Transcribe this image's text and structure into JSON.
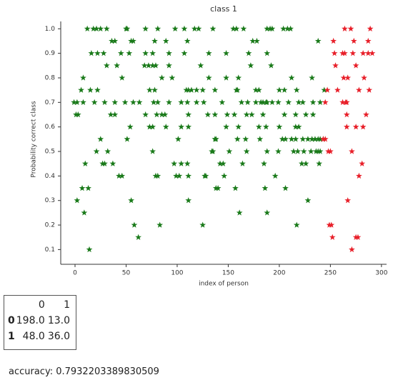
{
  "chart_data": {
    "type": "scatter",
    "title": "class 1",
    "x_label": "index of person",
    "y_label": "Probability correct class",
    "xlim": [
      -14,
      305
    ],
    "ylim": [
      0.04,
      1.03
    ],
    "xticks": [
      0,
      50,
      100,
      150,
      200,
      250,
      300
    ],
    "yticks": [
      0.1,
      0.2,
      0.3,
      0.4,
      0.5,
      0.6,
      0.7,
      0.8,
      0.9,
      {
        "value": 1,
        "label": "1.0"
      }
    ],
    "marker": "star",
    "series": [
      {
        "color": "#1a7a1a",
        "x": [
          12,
          18,
          21,
          25,
          31,
          50,
          51,
          69,
          81,
          98,
          107,
          117,
          121,
          135,
          155,
          158,
          165,
          188,
          191,
          193,
          204,
          208,
          211,
          36,
          39,
          55,
          57,
          78,
          89,
          110,
          174,
          178,
          238,
          16,
          22,
          28,
          45,
          53,
          69,
          76,
          92,
          107,
          131,
          148,
          170,
          188,
          31,
          41,
          68,
          72,
          76,
          79,
          92,
          123,
          172,
          192,
          8,
          46,
          85,
          95,
          131,
          148,
          160,
          212,
          232,
          6,
          15,
          22,
          73,
          78,
          109,
          111,
          114,
          119,
          125,
          137,
          158,
          159,
          177,
          180,
          200,
          205,
          217,
          244,
          -1,
          2,
          8,
          19,
          29,
          39,
          49,
          57,
          63,
          77,
          81,
          92,
          104,
          110,
          119,
          126,
          144,
          163,
          169,
          177,
          182,
          184,
          187,
          188,
          193,
          199,
          209,
          219,
          223,
          233,
          240,
          1,
          3,
          35,
          39,
          69,
          80,
          85,
          88,
          111,
          130,
          137,
          149,
          156,
          168,
          173,
          184,
          205,
          216,
          226,
          233,
          54,
          73,
          76,
          89,
          104,
          111,
          148,
          160,
          180,
          187,
          200,
          216,
          219,
          25,
          51,
          101,
          137,
          138,
          159,
          167,
          181,
          203,
          206,
          212,
          216,
          223,
          228,
          232,
          235,
          238,
          240,
          243,
          21,
          32,
          76,
          134,
          135,
          151,
          168,
          188,
          199,
          214,
          218,
          224,
          231,
          236,
          238,
          240,
          10,
          27,
          29,
          37,
          97,
          104,
          110,
          142,
          145,
          164,
          185,
          222,
          226,
          239,
          43,
          46,
          79,
          81,
          99,
          102,
          111,
          127,
          128,
          146,
          196,
          7,
          13,
          138,
          140,
          157,
          186,
          206,
          2,
          55,
          111,
          228,
          9,
          161,
          188,
          58,
          83,
          125,
          217,
          62,
          14
        ],
        "values": [
          1,
          1,
          1,
          1,
          1,
          1,
          1,
          1,
          1,
          1,
          1,
          1,
          1,
          1,
          1,
          1,
          1,
          1,
          1,
          1,
          1,
          1,
          1,
          0.95,
          0.95,
          0.95,
          0.95,
          0.95,
          0.95,
          0.95,
          0.95,
          0.95,
          0.95,
          0.9,
          0.9,
          0.9,
          0.9,
          0.9,
          0.9,
          0.9,
          0.9,
          0.9,
          0.9,
          0.9,
          0.9,
          0.9,
          0.85,
          0.85,
          0.85,
          0.85,
          0.85,
          0.85,
          0.85,
          0.85,
          0.85,
          0.85,
          0.8,
          0.8,
          0.8,
          0.8,
          0.8,
          0.8,
          0.8,
          0.8,
          0.8,
          0.75,
          0.75,
          0.75,
          0.75,
          0.75,
          0.75,
          0.75,
          0.75,
          0.75,
          0.75,
          0.75,
          0.75,
          0.75,
          0.75,
          0.75,
          0.75,
          0.75,
          0.75,
          0.75,
          0.7,
          0.7,
          0.7,
          0.7,
          0.7,
          0.7,
          0.7,
          0.7,
          0.7,
          0.7,
          0.7,
          0.7,
          0.7,
          0.7,
          0.7,
          0.7,
          0.7,
          0.7,
          0.7,
          0.7,
          0.7,
          0.7,
          0.7,
          0.7,
          0.7,
          0.7,
          0.7,
          0.7,
          0.7,
          0.7,
          0.7,
          0.65,
          0.65,
          0.65,
          0.65,
          0.65,
          0.65,
          0.65,
          0.65,
          0.65,
          0.65,
          0.65,
          0.65,
          0.65,
          0.65,
          0.65,
          0.65,
          0.65,
          0.65,
          0.65,
          0.65,
          0.6,
          0.6,
          0.6,
          0.6,
          0.6,
          0.6,
          0.6,
          0.6,
          0.6,
          0.6,
          0.6,
          0.6,
          0.6,
          0.55,
          0.55,
          0.55,
          0.55,
          0.55,
          0.55,
          0.55,
          0.55,
          0.55,
          0.55,
          0.55,
          0.55,
          0.55,
          0.55,
          0.55,
          0.55,
          0.55,
          0.55,
          0.55,
          0.5,
          0.5,
          0.5,
          0.5,
          0.5,
          0.5,
          0.5,
          0.5,
          0.5,
          0.5,
          0.5,
          0.5,
          0.5,
          0.5,
          0.5,
          0.5,
          0.45,
          0.45,
          0.45,
          0.45,
          0.45,
          0.45,
          0.45,
          0.45,
          0.45,
          0.45,
          0.45,
          0.45,
          0.45,
          0.45,
          0.4,
          0.4,
          0.4,
          0.4,
          0.4,
          0.4,
          0.4,
          0.4,
          0.4,
          0.4,
          0.4,
          0.35,
          0.35,
          0.35,
          0.35,
          0.35,
          0.35,
          0.35,
          0.3,
          0.3,
          0.3,
          0.3,
          0.25,
          0.25,
          0.25,
          0.2,
          0.2,
          0.2,
          0.2,
          0.15,
          0.1
        ]
      },
      {
        "color": "#e8202a",
        "x": [
          264,
          270,
          289,
          253,
          273,
          287,
          254,
          262,
          264,
          272,
          282,
          287,
          291,
          255,
          275,
          263,
          267,
          283,
          247,
          257,
          278,
          288,
          245,
          262,
          265,
          266,
          266,
          285,
          266,
          275,
          282,
          243,
          245,
          248,
          250,
          271,
          281,
          278,
          267,
          249,
          251,
          252,
          275,
          277,
          271
        ],
        "values": [
          1,
          1,
          1,
          0.95,
          0.95,
          0.95,
          0.9,
          0.9,
          0.9,
          0.9,
          0.9,
          0.9,
          0.9,
          0.85,
          0.85,
          0.8,
          0.8,
          0.8,
          0.75,
          0.75,
          0.75,
          0.75,
          0.7,
          0.7,
          0.7,
          0.7,
          0.65,
          0.65,
          0.6,
          0.6,
          0.6,
          0.55,
          0.55,
          0.5,
          0.5,
          0.5,
          0.45,
          0.4,
          0.3,
          0.2,
          0.2,
          0.15,
          0.15,
          0.15,
          0.1
        ]
      }
    ]
  },
  "table": {
    "columns": [
      "0",
      "1"
    ],
    "rows": [
      {
        "index": "0",
        "cells": [
          "198.0",
          "13.0"
        ]
      },
      {
        "index": "1",
        "cells": [
          "48.0",
          "36.0"
        ]
      }
    ]
  },
  "accuracy": "accuracy: 0.7932203389830509"
}
